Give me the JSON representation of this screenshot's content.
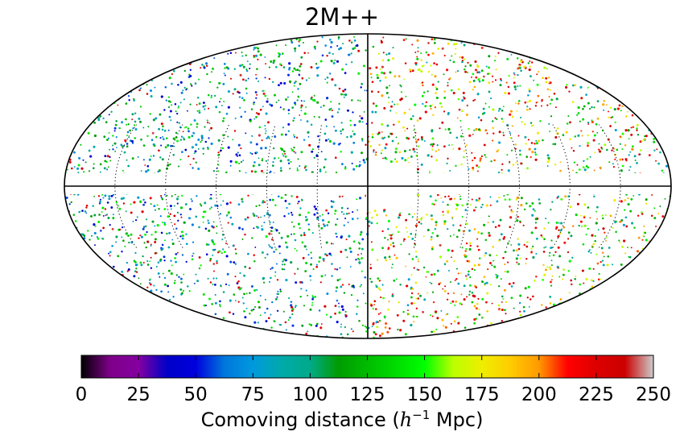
{
  "chart_data": {
    "type": "scatter",
    "projection": "Mollweide all-sky",
    "title": "2M++",
    "points_note": "",
    "colorbar": {
      "label_prefix": "Comoving distance (",
      "label_math_base": "h",
      "label_math_exp": "−1",
      "label_suffix": " Mpc)",
      "range": [
        0,
        250
      ],
      "ticks": [
        "0",
        "25",
        "50",
        "75",
        "100",
        "125",
        "150",
        "175",
        "200",
        "225",
        "250"
      ],
      "colormap": "nipy_spectral",
      "colormap_stops": [
        "#000000",
        "#7e0088",
        "#8400a0",
        "#0000c8",
        "#0000dd",
        "#0077dd",
        "#0099dd",
        "#00aaaa",
        "#00aa88",
        "#009c00",
        "#00bb00",
        "#00dc00",
        "#00ff00",
        "#bbff00",
        "#eeee00",
        "#ffcc00",
        "#ff9900",
        "#ff0000",
        "#dd0000",
        "#cc0000",
        "#cccccc"
      ]
    },
    "zone_of_avoidance_hidden": true,
    "grid": {
      "meridians": "dotted near equator",
      "central_meridian": true,
      "equator": true
    }
  }
}
